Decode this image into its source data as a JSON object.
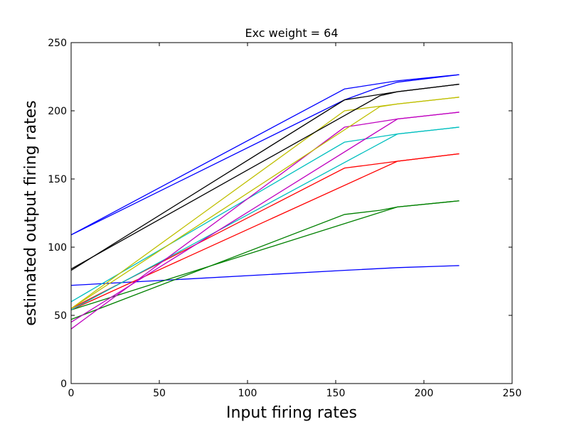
{
  "chart_data": {
    "type": "line",
    "title": "Exc weight = 64",
    "xlabel": "Input firing rates",
    "ylabel": "estimated output firing rates",
    "xlim": [
      0,
      250
    ],
    "ylim": [
      0,
      250
    ],
    "xticks": [
      0,
      50,
      100,
      150,
      200,
      250
    ],
    "yticks": [
      0,
      50,
      100,
      150,
      200,
      250
    ],
    "grid": false,
    "series": [
      {
        "color": "#0000ff",
        "x": [
          0,
          155,
          185,
          220
        ],
        "y": [
          72,
          83,
          85,
          86.5
        ]
      },
      {
        "color": "#0000ff",
        "x": [
          0,
          155,
          172,
          185,
          220
        ],
        "y": [
          109,
          208,
          216,
          221,
          226.5
        ]
      },
      {
        "color": "#0000ff",
        "x": [
          0,
          155,
          185,
          220
        ],
        "y": [
          109,
          216,
          222,
          226.5
        ]
      },
      {
        "color": "#008000",
        "x": [
          0,
          155,
          175,
          185,
          220
        ],
        "y": [
          47,
          124,
          127,
          129.5,
          134
        ]
      },
      {
        "color": "#008000",
        "x": [
          0,
          185,
          220
        ],
        "y": [
          54,
          129.5,
          134
        ]
      },
      {
        "color": "#ff0000",
        "x": [
          0,
          155,
          185,
          220
        ],
        "y": [
          55,
          158,
          163,
          168.5
        ]
      },
      {
        "color": "#ff0000",
        "x": [
          0,
          185,
          220
        ],
        "y": [
          54,
          163,
          168.5
        ]
      },
      {
        "color": "#00bfbf",
        "x": [
          0,
          155,
          185,
          220
        ],
        "y": [
          60,
          177,
          183,
          188
        ]
      },
      {
        "color": "#00bfbf",
        "x": [
          0,
          185,
          220
        ],
        "y": [
          54,
          183,
          188
        ]
      },
      {
        "color": "#bf00bf",
        "x": [
          0,
          155,
          185,
          220
        ],
        "y": [
          40,
          188,
          194,
          199
        ]
      },
      {
        "color": "#bf00bf",
        "x": [
          0,
          185,
          220
        ],
        "y": [
          45,
          194,
          199
        ]
      },
      {
        "color": "#bfbf00",
        "x": [
          0,
          155,
          185,
          220
        ],
        "y": [
          55,
          200,
          205,
          210
        ]
      },
      {
        "color": "#bfbf00",
        "x": [
          0,
          175,
          185,
          220
        ],
        "y": [
          55,
          203,
          205,
          210
        ]
      },
      {
        "color": "#000000",
        "x": [
          0,
          155,
          185,
          220
        ],
        "y": [
          83,
          208,
          214,
          219.5
        ]
      },
      {
        "color": "#000000",
        "x": [
          0,
          175,
          185,
          220
        ],
        "y": [
          84,
          211,
          214,
          219.5
        ]
      }
    ]
  }
}
